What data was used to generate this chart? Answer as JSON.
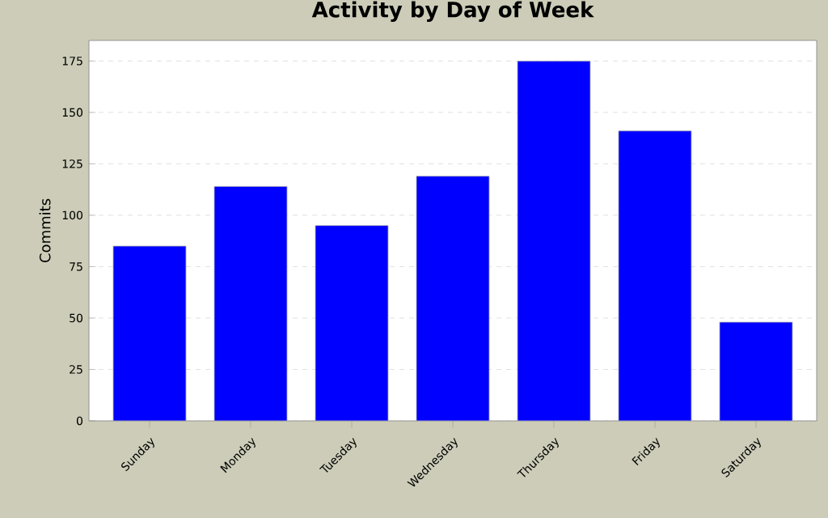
{
  "chart_data": {
    "type": "bar",
    "title": "Activity by Day of Week",
    "ylabel": "Commits",
    "categories": [
      "Sunday",
      "Monday",
      "Tuesday",
      "Wednesday",
      "Thursday",
      "Friday",
      "Saturday"
    ],
    "values": [
      85,
      114,
      95,
      119,
      175,
      141,
      48
    ],
    "color": "#0000ff",
    "ylim": [
      0,
      185
    ],
    "yticks": [
      0,
      25,
      50,
      75,
      100,
      125,
      150,
      175
    ],
    "grid": "y"
  }
}
